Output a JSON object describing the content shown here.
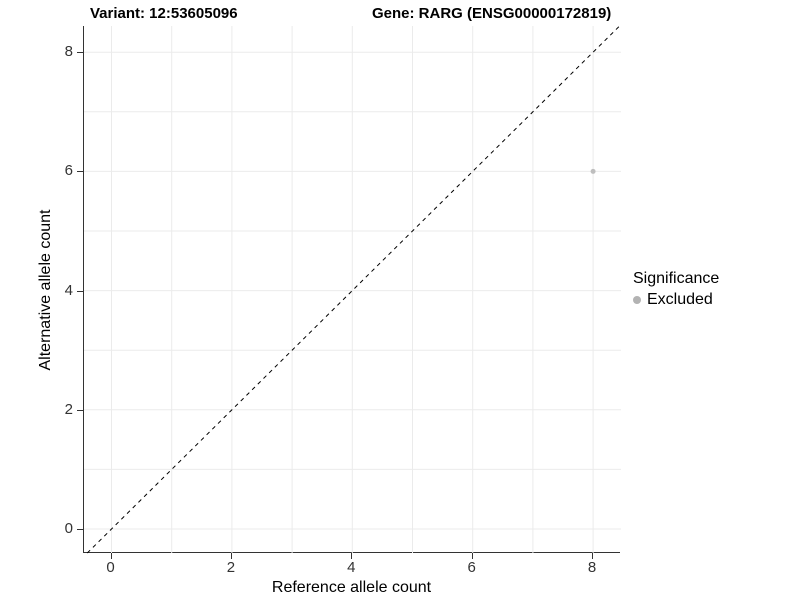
{
  "page": {
    "title_left": "Variant: 12:53605096",
    "title_right": "Gene: RARG (ENSG00000172819)"
  },
  "chart_data": {
    "type": "scatter",
    "title_left": "Variant: 12:53605096",
    "title_right": "Gene: RARG (ENSG00000172819)",
    "xlabel": "Reference allele count",
    "ylabel": "Alternative allele count",
    "xlim": [
      -0.45,
      8.45
    ],
    "ylim": [
      -0.4,
      8.44
    ],
    "x_ticks": [
      0,
      2,
      4,
      6,
      8
    ],
    "y_ticks": [
      0,
      2,
      4,
      6,
      8
    ],
    "grid": {
      "on": true,
      "every": 1,
      "color": "#ebebeb"
    },
    "reference_line": {
      "slope": 1,
      "intercept": 0,
      "style": "dashed",
      "color": "#000000",
      "dash": "4 4"
    },
    "series": [
      {
        "name": "Excluded",
        "color": "#bebebe",
        "points": [
          {
            "x": 8,
            "y": 6
          }
        ]
      }
    ],
    "legend": {
      "title": "Significance",
      "position": "right",
      "items": [
        {
          "label": "Excluded",
          "color": "#b3b3b3"
        }
      ]
    }
  },
  "colors": {
    "axis": "#333333",
    "tick": "#333333",
    "tick_label": "#333333"
  }
}
